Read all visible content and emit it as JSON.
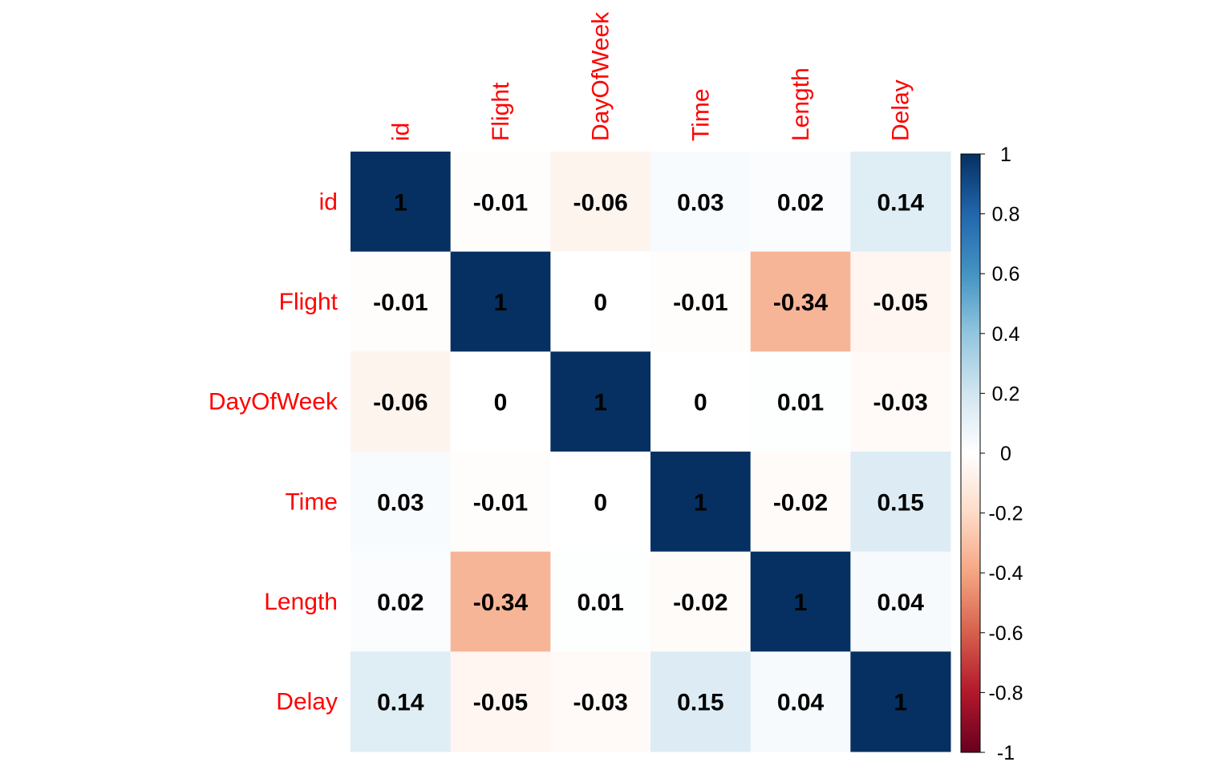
{
  "chart_data": {
    "type": "heatmap",
    "variables": [
      "id",
      "Flight",
      "DayOfWeek",
      "Time",
      "Length",
      "Delay"
    ],
    "matrix": [
      [
        1,
        -0.01,
        -0.06,
        0.03,
        0.02,
        0.14
      ],
      [
        -0.01,
        1,
        0,
        -0.01,
        -0.34,
        -0.05
      ],
      [
        -0.06,
        0,
        1,
        0,
        0.01,
        -0.03
      ],
      [
        0.03,
        -0.01,
        0,
        1,
        -0.02,
        0.15
      ],
      [
        0.02,
        -0.34,
        0.01,
        -0.02,
        1,
        0.04
      ],
      [
        0.14,
        -0.05,
        -0.03,
        0.15,
        0.04,
        1
      ]
    ],
    "cell_labels": [
      [
        "1",
        "-0.01",
        "-0.06",
        "0.03",
        "0.02",
        "0.14"
      ],
      [
        "-0.01",
        "1",
        "0",
        "-0.01",
        "-0.34",
        "-0.05"
      ],
      [
        "-0.06",
        "0",
        "1",
        "0",
        "0.01",
        "-0.03"
      ],
      [
        "0.03",
        "-0.01",
        "0",
        "1",
        "-0.02",
        "0.15"
      ],
      [
        "0.02",
        "-0.34",
        "0.01",
        "-0.02",
        "1",
        "0.04"
      ],
      [
        "0.14",
        "-0.05",
        "-0.03",
        "0.15",
        "0.04",
        "1"
      ]
    ],
    "colorbar": {
      "range": [
        -1,
        1
      ],
      "ticks": [
        "1",
        "0.8",
        "0.6",
        "0.4",
        "0.2",
        "0",
        "-0.2",
        "-0.4",
        "-0.6",
        "-0.8",
        "-1"
      ],
      "tick_values": [
        1,
        0.8,
        0.6,
        0.4,
        0.2,
        0,
        -0.2,
        -0.4,
        -0.6,
        -0.8,
        -1
      ],
      "colors": [
        "#67001F",
        "#B2182B",
        "#D6604D",
        "#F4A582",
        "#FDDBC7",
        "#FFFFFF",
        "#D1E5F0",
        "#92C5DE",
        "#4393C3",
        "#2166AC",
        "#053061"
      ]
    },
    "label_color": "#FF0000",
    "legend_position": "right"
  }
}
